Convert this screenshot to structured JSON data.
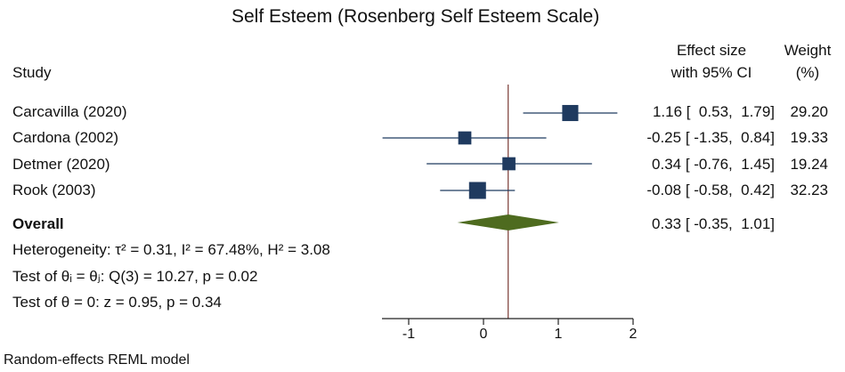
{
  "chart_data": {
    "type": "forest",
    "title": "Self Esteem (Rosenberg Self Esteem Scale)",
    "headers": {
      "study": "Study",
      "effect_line1": "Effect size",
      "effect_line2": "with 95% CI",
      "weight_line1": "Weight",
      "weight_line2": "(%)"
    },
    "studies": [
      {
        "name": "Carcavilla (2020)",
        "es": 1.16,
        "lo": 0.53,
        "hi": 1.79,
        "ci_text": "1.16 [  0.53,  1.79]",
        "weight": 29.2,
        "weight_text": "29.20"
      },
      {
        "name": "Cardona (2002)",
        "es": -0.25,
        "lo": -1.35,
        "hi": 0.84,
        "ci_text": "-0.25 [ -1.35,  0.84]",
        "weight": 19.33,
        "weight_text": "19.33"
      },
      {
        "name": "Detmer (2020)",
        "es": 0.34,
        "lo": -0.76,
        "hi": 1.45,
        "ci_text": "0.34 [ -0.76,  1.45]",
        "weight": 19.24,
        "weight_text": "19.24"
      },
      {
        "name": "Rook (2003)",
        "es": -0.08,
        "lo": -0.58,
        "hi": 0.42,
        "ci_text": "-0.08 [ -0.58,  0.42]",
        "weight": 32.23,
        "weight_text": "32.23"
      }
    ],
    "overall": {
      "label": "Overall",
      "es": 0.33,
      "lo": -0.35,
      "hi": 1.01,
      "ci_text": "0.33 [ -0.35,  1.01]"
    },
    "stats": {
      "heterogeneity": "Heterogeneity: τ² = 0.31, I² = 67.48%, H² = 3.08",
      "test_equal": "Test of θᵢ = θⱼ: Q(3) = 10.27, p = 0.02",
      "test_zero": "Test of θ = 0: z = 0.95, p = 0.34"
    },
    "xaxis": {
      "range": [
        -1,
        2
      ],
      "ticks": [
        -1,
        0,
        1,
        2
      ],
      "tick_labels": [
        "-1",
        "0",
        "1",
        "2"
      ]
    },
    "reference_line": 0.33,
    "footnote": "Random-effects REML model",
    "colors": {
      "marker": "#1f3a5f",
      "ci_line": "#1f3a5f",
      "diamond": "#4e6b1f",
      "reference": "#7a3b35",
      "axis": "#222222"
    }
  }
}
